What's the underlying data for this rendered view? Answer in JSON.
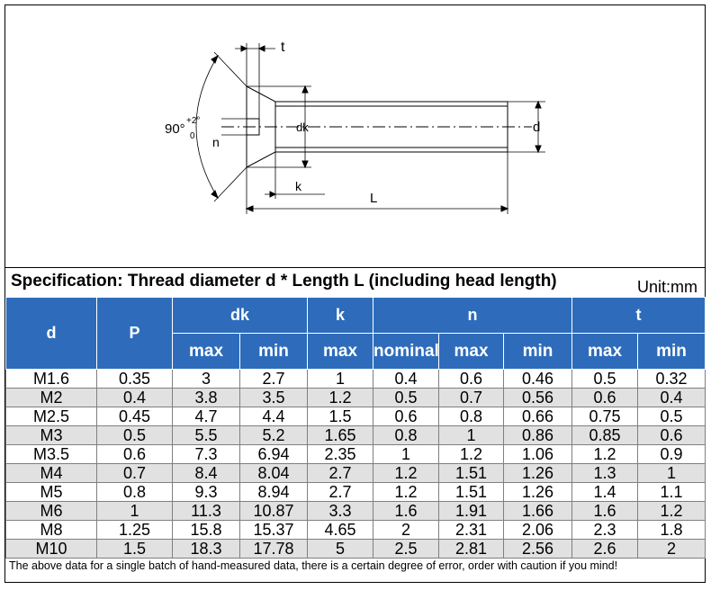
{
  "drawing": {
    "labels": {
      "t": "t",
      "angle": "90°",
      "angle_upper": "+2°",
      "angle_lower": "0",
      "n": "n",
      "dk": "dk",
      "k": "k",
      "L": "L",
      "d": "d"
    }
  },
  "spec": {
    "title": "Specification: Thread diameter d * Length L (including head length)",
    "unit": "Unit:mm"
  },
  "table": {
    "group_headers": {
      "d": "d",
      "p": "P",
      "dk": "dk",
      "k": "k",
      "n": "n",
      "t": "t"
    },
    "sub_headers": {
      "dk_max": "max",
      "dk_min": "min",
      "k_max": "max",
      "n_nominal": "nominal",
      "n_max": "max",
      "n_min": "min",
      "t_max": "max",
      "t_min": "min"
    },
    "rows": [
      [
        "M1.6",
        "0.35",
        "3",
        "2.7",
        "1",
        "0.4",
        "0.6",
        "0.46",
        "0.5",
        "0.32"
      ],
      [
        "M2",
        "0.4",
        "3.8",
        "3.5",
        "1.2",
        "0.5",
        "0.7",
        "0.56",
        "0.6",
        "0.4"
      ],
      [
        "M2.5",
        "0.45",
        "4.7",
        "4.4",
        "1.5",
        "0.6",
        "0.8",
        "0.66",
        "0.75",
        "0.5"
      ],
      [
        "M3",
        "0.5",
        "5.5",
        "5.2",
        "1.65",
        "0.8",
        "1",
        "0.86",
        "0.85",
        "0.6"
      ],
      [
        "M3.5",
        "0.6",
        "7.3",
        "6.94",
        "2.35",
        "1",
        "1.2",
        "1.06",
        "1.2",
        "0.9"
      ],
      [
        "M4",
        "0.7",
        "8.4",
        "8.04",
        "2.7",
        "1.2",
        "1.51",
        "1.26",
        "1.3",
        "1"
      ],
      [
        "M5",
        "0.8",
        "9.3",
        "8.94",
        "2.7",
        "1.2",
        "1.51",
        "1.26",
        "1.4",
        "1.1"
      ],
      [
        "M6",
        "1",
        "11.3",
        "10.87",
        "3.3",
        "1.6",
        "1.91",
        "1.66",
        "1.6",
        "1.2"
      ],
      [
        "M8",
        "1.25",
        "15.8",
        "15.37",
        "4.65",
        "2",
        "2.31",
        "2.06",
        "2.3",
        "1.8"
      ],
      [
        "M10",
        "1.5",
        "18.3",
        "17.78",
        "5",
        "2.5",
        "2.81",
        "2.56",
        "2.6",
        "2"
      ]
    ]
  },
  "footnote": "The above data for a single batch of hand-measured data, there is a certain degree of error, order with caution if you mind!"
}
